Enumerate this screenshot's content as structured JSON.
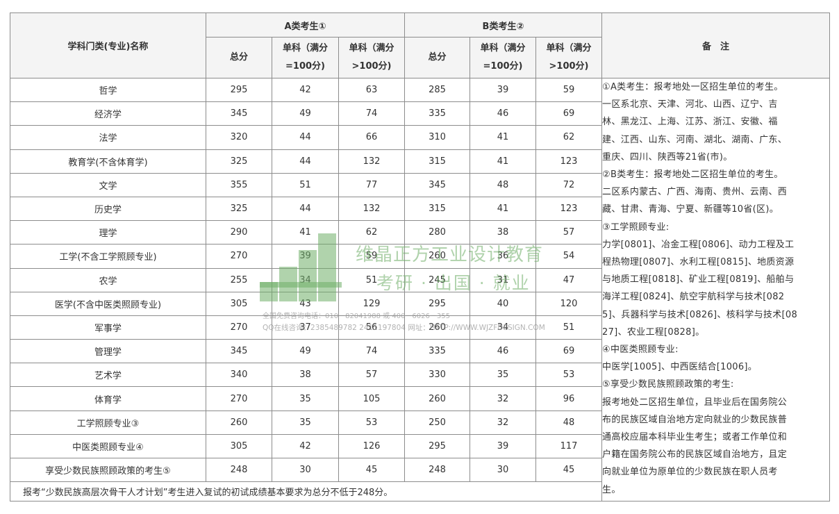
{
  "header": {
    "subject_col": "学科门类(专业)名称",
    "group_a": "A类考生①",
    "group_b": "B类考生②",
    "notes_col": "备　注",
    "total": "总分",
    "single_100_line1": "单科（满分",
    "single_100_line2": "=100分)",
    "single_gt100_line1": "单科（满分",
    "single_gt100_line2": ">100分)"
  },
  "rows": [
    {
      "name": "哲学",
      "a": [
        "295",
        "42",
        "63"
      ],
      "b": [
        "285",
        "39",
        "59"
      ]
    },
    {
      "name": "经济学",
      "a": [
        "345",
        "49",
        "74"
      ],
      "b": [
        "335",
        "46",
        "69"
      ]
    },
    {
      "name": "法学",
      "a": [
        "320",
        "44",
        "66"
      ],
      "b": [
        "310",
        "41",
        "62"
      ]
    },
    {
      "name": "教育学(不含体育学)",
      "a": [
        "325",
        "44",
        "132"
      ],
      "b": [
        "315",
        "41",
        "123"
      ]
    },
    {
      "name": "文学",
      "a": [
        "355",
        "51",
        "77"
      ],
      "b": [
        "345",
        "48",
        "72"
      ]
    },
    {
      "name": "历史学",
      "a": [
        "325",
        "44",
        "132"
      ],
      "b": [
        "315",
        "41",
        "123"
      ]
    },
    {
      "name": "理学",
      "a": [
        "290",
        "41",
        "62"
      ],
      "b": [
        "280",
        "38",
        "57"
      ]
    },
    {
      "name": "工学(不含工学照顾专业)",
      "a": [
        "270",
        "39",
        "59"
      ],
      "b": [
        "260",
        "36",
        "54"
      ]
    },
    {
      "name": "农学",
      "a": [
        "255",
        "34",
        "51"
      ],
      "b": [
        "245",
        "31",
        "47"
      ]
    },
    {
      "name": "医学(不含中医类照顾专业)",
      "a": [
        "305",
        "43",
        "129"
      ],
      "b": [
        "295",
        "40",
        "120"
      ]
    },
    {
      "name": "军事学",
      "a": [
        "270",
        "37",
        "56"
      ],
      "b": [
        "260",
        "34",
        "51"
      ]
    },
    {
      "name": "管理学",
      "a": [
        "345",
        "49",
        "74"
      ],
      "b": [
        "335",
        "46",
        "69"
      ]
    },
    {
      "name": "艺术学",
      "a": [
        "340",
        "38",
        "57"
      ],
      "b": [
        "330",
        "35",
        "53"
      ]
    },
    {
      "name": "体育学",
      "a": [
        "270",
        "35",
        "105"
      ],
      "b": [
        "260",
        "32",
        "96"
      ]
    },
    {
      "name": "工学照顾专业③",
      "a": [
        "260",
        "35",
        "53"
      ],
      "b": [
        "250",
        "32",
        "48"
      ]
    },
    {
      "name": "中医类照顾专业④",
      "a": [
        "305",
        "42",
        "126"
      ],
      "b": [
        "295",
        "39",
        "117"
      ]
    },
    {
      "name": "享受少数民族照顾政策的考生⑤",
      "a": [
        "248",
        "30",
        "45"
      ],
      "b": [
        "248",
        "30",
        "45"
      ]
    }
  ],
  "footer": "报考“少数民族高层次骨干人才计划”考生进入复试的初试成绩基本要求为总分不低于248分。",
  "notes": [
    "①A类考生：报考地处一区招生单位的考生。",
    "一区系北京、天津、河北、山西、辽宁、吉",
    "林、黑龙江、上海、江苏、浙江、安徽、福",
    "建、江西、山东、河南、湖北、湖南、广东、",
    "重庆、四川、陕西等21省(市)。",
    "②B类考生：报考地处二区招生单位的考生。",
    "二区系内蒙古、广西、海南、贵州、云南、西",
    "藏、甘肃、青海、宁夏、新疆等10省(区)。",
    "③工学照顾专业:",
    "力学[0801]、冶金工程[0806]、动力工程及工",
    "程热物理[0807]、水利工程[0815]、地质资源",
    "与地质工程[0818]、矿业工程[0819]、船舶与",
    "海洋工程[0824]、航空宇航科学与技术[082",
    "5]、兵器科学与技术[0826]、核科学与技术[08",
    "27]、农业工程[0828]。",
    "④中医类照顾专业:",
    "中医学[1005]、中西医结合[1006]。",
    "⑤享受少数民族照顾政策的考生:",
    "报考地处二区招生单位，且毕业后在国务院公",
    "布的民族区域自治地方定向就业的少数民族普",
    "通高校应届本科毕业生考生；或者工作单位和",
    "户籍在国务院公布的民族区域自治地方，且定",
    "向就业单位为原单位的少数民族在职人员考",
    "生。"
  ],
  "watermark": {
    "title": "维晶正方工业设计教育",
    "subtitle": "考研 · 出国 · 就业",
    "line1": "全国免费咨询电话：010－82041988 或 400－6026－355",
    "line2": "QQ在线咨询：2385489782 2411197804    网址：HTTP://WWW.WJZFDESIGN.COM",
    "color": "#6fae68"
  }
}
